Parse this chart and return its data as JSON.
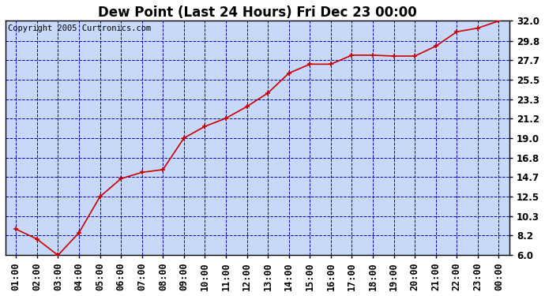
{
  "title": "Dew Point (Last 24 Hours) Fri Dec 23 00:00",
  "copyright": "Copyright 2005 Curtronics.com",
  "x_labels": [
    "01:00",
    "02:00",
    "03:00",
    "04:00",
    "05:00",
    "06:00",
    "07:00",
    "08:00",
    "09:00",
    "10:00",
    "11:00",
    "12:00",
    "13:00",
    "14:00",
    "15:00",
    "16:00",
    "17:00",
    "18:00",
    "19:00",
    "20:00",
    "21:00",
    "22:00",
    "23:00",
    "00:00"
  ],
  "y_values": [
    8.9,
    7.8,
    6.0,
    8.5,
    12.5,
    14.5,
    15.2,
    15.5,
    19.0,
    20.3,
    21.2,
    22.5,
    24.0,
    26.2,
    27.2,
    27.2,
    28.2,
    28.2,
    28.1,
    28.1,
    29.2,
    30.8,
    31.2,
    32.0
  ],
  "y_ticks": [
    6.0,
    8.2,
    10.3,
    12.5,
    14.7,
    16.8,
    19.0,
    21.2,
    23.3,
    25.5,
    27.7,
    29.8,
    32.0
  ],
  "y_min": 6.0,
  "y_max": 32.0,
  "line_color": "#cc0000",
  "marker_color": "#cc0000",
  "bg_color": "#c8d8f8",
  "fig_bg": "#ffffff",
  "grid_color": "#0000bb",
  "border_color": "#000000",
  "title_fontsize": 12,
  "tick_fontsize": 8.5,
  "copyright_fontsize": 7.5
}
